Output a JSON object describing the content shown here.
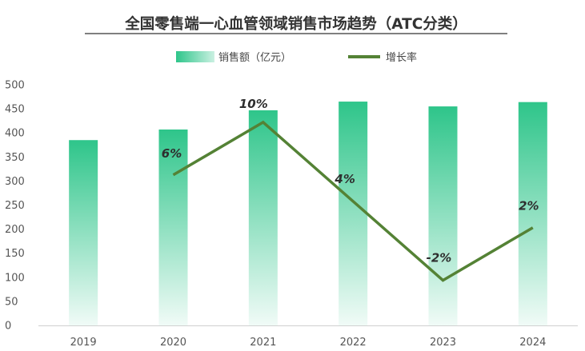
{
  "chart_data": {
    "type": "bar",
    "title": "全国零售端一心血管领域销售市场趋势（ATC分类）",
    "xlabel": "",
    "ylabel": "",
    "categories": [
      "2019",
      "2020",
      "2021",
      "2022",
      "2023",
      "2024"
    ],
    "ylim": [
      0,
      500
    ],
    "yticks": [
      0,
      50,
      100,
      150,
      200,
      250,
      300,
      350,
      400,
      450,
      500
    ],
    "grid": false,
    "legend_position": "top-center",
    "series": [
      {
        "name": "销售额（亿元）",
        "type": "bar",
        "values": [
          385,
          407,
          447,
          465,
          455,
          464
        ],
        "color": "#2ec58a"
      },
      {
        "name": "增长率",
        "type": "line",
        "values": [
          null,
          6,
          10,
          4,
          -2,
          2
        ],
        "labels": [
          "",
          "6%",
          "10%",
          "4%",
          "-2%",
          "2%"
        ],
        "color": "#548235"
      }
    ]
  }
}
